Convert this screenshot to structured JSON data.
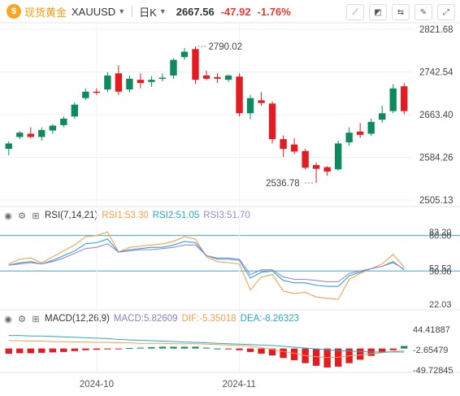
{
  "header": {
    "brand": "现货黄金",
    "symbol": "XAUUSD",
    "timeframe": "日K",
    "price": "2667.56",
    "change": "-47.92",
    "change_pct": "-1.76%"
  },
  "colors": {
    "up": "#0f8a5f",
    "down": "#e31b23",
    "rsi1": "#f5a04a",
    "rsi2": "#2aa8c8",
    "rsi3": "#9b86d6",
    "macd_dif": "#f5a04a",
    "macd_dea": "#2aa8c8",
    "macd_label": "#8e7cc3",
    "level_line": "#39a9d4"
  },
  "rsi": {
    "label": "RSI(7,14,21)",
    "rsi1_label": "RSI1:53.30",
    "rsi2_label": "RSI2:51.05",
    "rsi3_label": "RSI3:51.70"
  },
  "macd": {
    "label": "MACD(12,26,9)",
    "macd_label": "MACD:5.82609",
    "dif_label": "DIF:-5.35018",
    "dea_label": "DEA:-8.26323"
  },
  "chart_data": [
    {
      "type": "candlestick",
      "title": "XAUUSD 日K",
      "ylim": [
        2505.13,
        2821.68
      ],
      "y_ticks": [
        "2821.68",
        "2742.54",
        "2663.40",
        "2584.26",
        "2505.13"
      ],
      "x_ticks": [
        "2024-10",
        "2024-11"
      ],
      "annotations": {
        "high": "2790.02",
        "low": "2536.78"
      },
      "candles": [
        {
          "o": 2600,
          "h": 2614,
          "l": 2588,
          "c": 2610
        },
        {
          "o": 2622,
          "h": 2633,
          "l": 2618,
          "c": 2630
        },
        {
          "o": 2628,
          "h": 2640,
          "l": 2620,
          "c": 2622
        },
        {
          "o": 2622,
          "h": 2640,
          "l": 2615,
          "c": 2635
        },
        {
          "o": 2634,
          "h": 2646,
          "l": 2628,
          "c": 2643
        },
        {
          "o": 2644,
          "h": 2660,
          "l": 2640,
          "c": 2656
        },
        {
          "o": 2660,
          "h": 2686,
          "l": 2656,
          "c": 2682
        },
        {
          "o": 2694,
          "h": 2712,
          "l": 2690,
          "c": 2706
        },
        {
          "o": 2706,
          "h": 2712,
          "l": 2700,
          "c": 2704
        },
        {
          "o": 2710,
          "h": 2742,
          "l": 2705,
          "c": 2736
        },
        {
          "o": 2740,
          "h": 2755,
          "l": 2700,
          "c": 2706
        },
        {
          "o": 2710,
          "h": 2736,
          "l": 2705,
          "c": 2730
        },
        {
          "o": 2728,
          "h": 2740,
          "l": 2712,
          "c": 2722
        },
        {
          "o": 2724,
          "h": 2735,
          "l": 2715,
          "c": 2728
        },
        {
          "o": 2730,
          "h": 2740,
          "l": 2725,
          "c": 2732
        },
        {
          "o": 2736,
          "h": 2768,
          "l": 2730,
          "c": 2765
        },
        {
          "o": 2770,
          "h": 2787,
          "l": 2765,
          "c": 2780
        },
        {
          "o": 2785,
          "h": 2790.02,
          "l": 2720,
          "c": 2728
        },
        {
          "o": 2736,
          "h": 2745,
          "l": 2727,
          "c": 2730
        },
        {
          "o": 2733,
          "h": 2740,
          "l": 2722,
          "c": 2730
        },
        {
          "o": 2728,
          "h": 2738,
          "l": 2724,
          "c": 2736
        },
        {
          "o": 2734,
          "h": 2740,
          "l": 2660,
          "c": 2666
        },
        {
          "o": 2666,
          "h": 2700,
          "l": 2655,
          "c": 2694
        },
        {
          "o": 2690,
          "h": 2705,
          "l": 2680,
          "c": 2685
        },
        {
          "o": 2684,
          "h": 2688,
          "l": 2610,
          "c": 2618
        },
        {
          "o": 2618,
          "h": 2625,
          "l": 2585,
          "c": 2600
        },
        {
          "o": 2608,
          "h": 2620,
          "l": 2590,
          "c": 2595
        },
        {
          "o": 2596,
          "h": 2600,
          "l": 2562,
          "c": 2565
        },
        {
          "o": 2570,
          "h": 2575,
          "l": 2536.78,
          "c": 2563
        },
        {
          "o": 2566,
          "h": 2568,
          "l": 2550,
          "c": 2558
        },
        {
          "o": 2562,
          "h": 2615,
          "l": 2560,
          "c": 2610
        },
        {
          "o": 2612,
          "h": 2640,
          "l": 2606,
          "c": 2630
        },
        {
          "o": 2632,
          "h": 2648,
          "l": 2620,
          "c": 2626
        },
        {
          "o": 2628,
          "h": 2656,
          "l": 2624,
          "c": 2650
        },
        {
          "o": 2654,
          "h": 2680,
          "l": 2648,
          "c": 2666
        },
        {
          "o": 2670,
          "h": 2720,
          "l": 2666,
          "c": 2712
        },
        {
          "o": 2716,
          "h": 2722,
          "l": 2664,
          "c": 2670
        }
      ]
    },
    {
      "type": "line",
      "title": "RSI(7,14,21)",
      "ylim": [
        22.03,
        83.2
      ],
      "y_ticks": [
        "83.20",
        "80.00",
        "52.52",
        "50.00",
        "22.03"
      ],
      "series": [
        {
          "name": "RSI1",
          "values": [
            56,
            60,
            61,
            57,
            62,
            67,
            72,
            79,
            80,
            83,
            66,
            70,
            71,
            72,
            73,
            75,
            79,
            77,
            62,
            58,
            57,
            56,
            34,
            45,
            47,
            33,
            31,
            32,
            28,
            27,
            26,
            43,
            48,
            52,
            56,
            64,
            53.3
          ]
        },
        {
          "name": "RSI2",
          "values": [
            55,
            57,
            58,
            56,
            59,
            63,
            67,
            73,
            74,
            77,
            66,
            68,
            69,
            70,
            70,
            72,
            75,
            74,
            63,
            60,
            60,
            59,
            44,
            49,
            50,
            42,
            40,
            40,
            38,
            37,
            37,
            46,
            49,
            52,
            54,
            58,
            51.05
          ]
        },
        {
          "name": "RSI3",
          "values": [
            55,
            56,
            57,
            56,
            58,
            61,
            65,
            69,
            70,
            73,
            66,
            67,
            68,
            68,
            69,
            70,
            72,
            72,
            63,
            61,
            61,
            60,
            47,
            51,
            51,
            45,
            43,
            43,
            42,
            41,
            41,
            48,
            50,
            52,
            54,
            57,
            51.7
          ]
        }
      ]
    },
    {
      "type": "bar",
      "title": "MACD(12,26,9)",
      "ylim": [
        -49.72845,
        44.41887
      ],
      "y_ticks": [
        "44.41887",
        "-2.65479",
        "-49.72845"
      ],
      "series": [
        {
          "name": "MACD",
          "values": [
            -12,
            -11,
            -11,
            -10,
            -9,
            -8,
            -6,
            -4,
            -3,
            -2,
            -1,
            1,
            2,
            3,
            4,
            4,
            4,
            4,
            2,
            0,
            -2,
            -4,
            -8,
            -12,
            -16,
            -22,
            -27,
            -34,
            -40,
            -44,
            -42,
            -34,
            -26,
            -17,
            -10,
            -4,
            5.82609
          ]
        },
        {
          "name": "DIF",
          "values": [
            18,
            18,
            17,
            17,
            16,
            16,
            15,
            15,
            14,
            14,
            13,
            13,
            12,
            12,
            12,
            11,
            11,
            11,
            10,
            9,
            8,
            7,
            5,
            2,
            -2,
            -7,
            -11,
            -16,
            -19,
            -21,
            -20,
            -17,
            -15,
            -12,
            -10,
            -7,
            -5.35
          ]
        },
        {
          "name": "DEA",
          "values": [
            30,
            30,
            29,
            29,
            28,
            27,
            26,
            25,
            24,
            23,
            21,
            20,
            19,
            18,
            17,
            16,
            15,
            14,
            13,
            12,
            11,
            10,
            9,
            8,
            7,
            5,
            3,
            1,
            -1,
            -3,
            -5,
            -6,
            -7,
            -8,
            -8,
            -8,
            -8.26
          ]
        }
      ]
    }
  ]
}
